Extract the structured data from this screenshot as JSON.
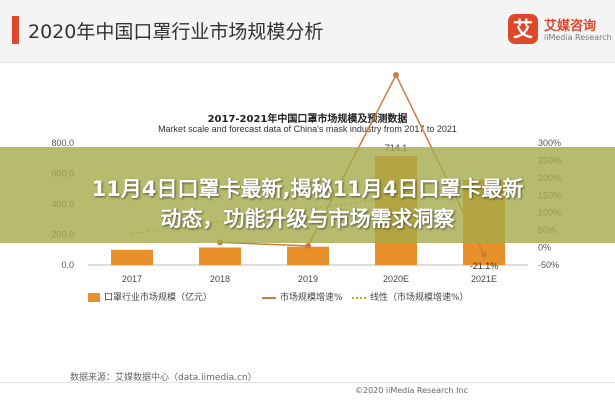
{
  "slide": {
    "title": "2020年中国口罩行业市场规模分析"
  },
  "brand": {
    "logo_char": "艾",
    "name_cn": "艾媒咨询",
    "name_en": "iiMedia Research"
  },
  "overlay": {
    "line1": "11月4日口罩卡最新,揭秘11月4日口罩卡最新",
    "line2": "动态，功能升级与市场需求洞察"
  },
  "chart_data": {
    "type": "bar",
    "title": "2017-2021年中国口罩市场规模及预测数据",
    "subtitle": "Market scale and forecast data of China's mask industry from 2017 to 2021",
    "categories": [
      "2017",
      "2018",
      "2019",
      "2020E",
      "2021E"
    ],
    "series": [
      {
        "name": "口罩行业市场规模（亿元）",
        "type": "bar",
        "axis": "left",
        "values": [
          100,
          115,
          120,
          714.1,
          560
        ]
      },
      {
        "name": "市场规模增速%",
        "type": "line",
        "axis": "right",
        "values": [
          null,
          15,
          5,
          495,
          -21.1
        ]
      }
    ],
    "trendline_label": "线性（市场规模增速%）",
    "data_labels": {
      "2020E": "714.1",
      "2021E": "-21.1%"
    },
    "y_left": {
      "ticks": [
        "0.0",
        "200.0",
        "400.0",
        "600.0",
        "800.0"
      ],
      "ylim": [
        0,
        800
      ]
    },
    "y_right": {
      "ticks": [
        "-50%",
        "0%",
        "50%",
        "100%",
        "150%",
        "200%",
        "250%",
        "300%"
      ],
      "ylim": [
        -50,
        300
      ]
    },
    "colors": {
      "bar": "#e8912a",
      "line": "#d07a3c",
      "trend": "#d4a017"
    },
    "legend_position": "bottom",
    "grid": false
  },
  "footer": {
    "source": "数据来源：艾媒数据中心（data.iimedia.cn）",
    "copyright": "©2020  iiMedia Research Inc"
  }
}
